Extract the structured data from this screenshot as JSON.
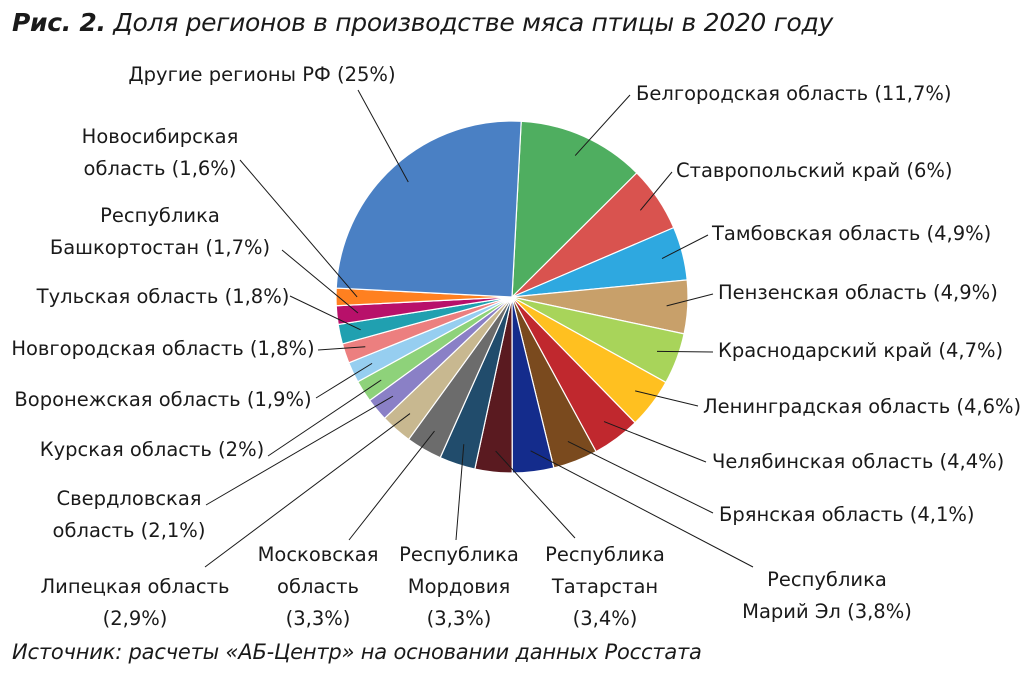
{
  "title": {
    "prefix": "Рис. 2.",
    "text": "Доля регионов в производстве мяса птицы в 2020 году"
  },
  "source": "Источник: расчеты «АБ-Центр» на основании данных Росстата",
  "chart_data": {
    "type": "pie",
    "unit": "%",
    "start_angle_deg": 87,
    "slices": [
      {
        "name": "Белгородская область",
        "value": 11.7,
        "color": "#4fae60",
        "label_lines": [
          "Белгородская область (11,7%)"
        ]
      },
      {
        "name": "Ставропольский край",
        "value": 6,
        "color": "#d9534f",
        "label_lines": [
          "Ставропольский край (6%)"
        ]
      },
      {
        "name": "Тамбовская область",
        "value": 4.9,
        "color": "#2ea8e0",
        "label_lines": [
          "Тамбовская область (4,9%)"
        ]
      },
      {
        "name": "Пензенская область",
        "value": 4.9,
        "color": "#c8a06a",
        "label_lines": [
          "Пензенская область (4,9%)"
        ]
      },
      {
        "name": "Краснодарский край",
        "value": 4.7,
        "color": "#a8d45a",
        "label_lines": [
          "Краснодарский край (4,7%)"
        ]
      },
      {
        "name": "Ленинградская область",
        "value": 4.6,
        "color": "#ffc020",
        "label_lines": [
          "Ленинградская область (4,6%)"
        ]
      },
      {
        "name": "Челябинская область",
        "value": 4.4,
        "color": "#c0282e",
        "label_lines": [
          "Челябинская область (4,4%)"
        ]
      },
      {
        "name": "Брянская область",
        "value": 4.1,
        "color": "#7a4a1e",
        "label_lines": [
          "Брянская область (4,1%)"
        ]
      },
      {
        "name": "Республика Марий Эл",
        "value": 3.8,
        "color": "#142c8c",
        "label_lines": [
          "Республика",
          "Марий Эл (3,8%)"
        ]
      },
      {
        "name": "Республика Татарстан",
        "value": 3.4,
        "color": "#5a1a20",
        "label_lines": [
          "Республика",
          "Татарстан",
          "(3,4%)"
        ]
      },
      {
        "name": "Республика Мордовия",
        "value": 3.3,
        "color": "#214c6c",
        "label_lines": [
          "Республика",
          "Мордовия",
          "(3,3%)"
        ]
      },
      {
        "name": "Московская область",
        "value": 3.3,
        "color": "#6c6c6c",
        "label_lines": [
          "Московская",
          "область",
          "(3,3%)"
        ]
      },
      {
        "name": "Липецкая область",
        "value": 2.9,
        "color": "#c8b890",
        "label_lines": [
          "Липецкая область",
          "(2,9%)"
        ]
      },
      {
        "name": "Свердловская область",
        "value": 2.1,
        "color": "#8a80c6",
        "label_lines": [
          "Свердловская",
          "область (2,1%)"
        ]
      },
      {
        "name": "Курская область",
        "value": 2,
        "color": "#8ed27a",
        "label_lines": [
          "Курская область (2%)"
        ]
      },
      {
        "name": "Воронежская область",
        "value": 1.9,
        "color": "#96cef0",
        "label_lines": [
          "Воронежская область (1,9%)"
        ]
      },
      {
        "name": "Новгородская область",
        "value": 1.8,
        "color": "#ec7f7f",
        "label_lines": [
          "Новгородская область (1,8%)"
        ]
      },
      {
        "name": "Тульская область",
        "value": 1.8,
        "color": "#20a0b0",
        "label_lines": [
          "Тульская область (1,8%)"
        ]
      },
      {
        "name": "Республика Башкортостан",
        "value": 1.7,
        "color": "#b8106a",
        "label_lines": [
          "Республика",
          "Башкортостан (1,7%)"
        ]
      },
      {
        "name": "Новосибирская область",
        "value": 1.6,
        "color": "#ff8020",
        "label_lines": [
          "Новосибирская",
          "область (1,6%)"
        ]
      },
      {
        "name": "Другие регионы РФ",
        "value": 25,
        "color": "#4a80c4",
        "label_lines": [
          "Другие регионы РФ (25%)"
        ]
      }
    ]
  }
}
